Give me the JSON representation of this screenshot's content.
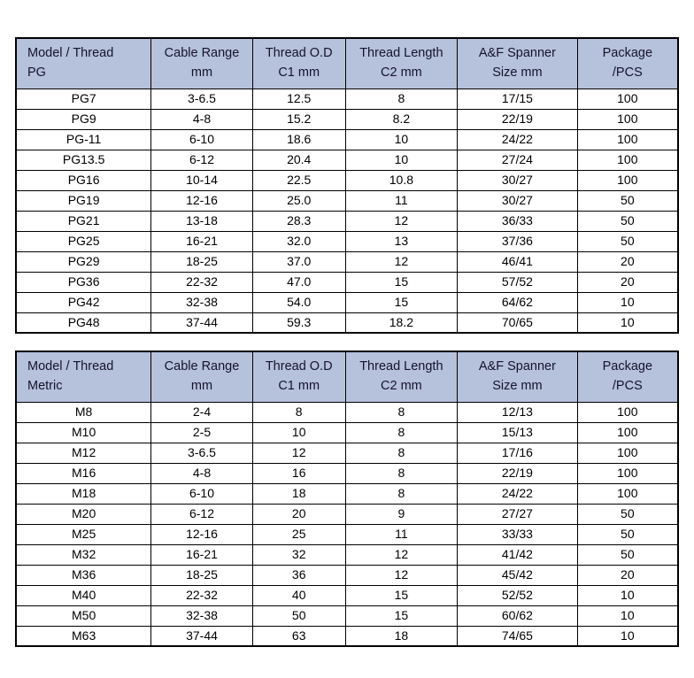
{
  "document": {
    "background": "#ffffff",
    "header_bg": "#b6c1dc",
    "border_color": "#000000"
  },
  "tables": [
    {
      "name": "pg-thread-table",
      "columns": [
        "Model / Thread\nPG",
        "Cable Range\nmm",
        "Thread O.D\nC1 mm",
        "Thread Length\nC2 mm",
        "A&F Spanner\nSize mm",
        "Package\n/PCS"
      ],
      "rows": [
        [
          "PG7",
          "3-6.5",
          "12.5",
          "8",
          "17/15",
          "100"
        ],
        [
          "PG9",
          "4-8",
          "15.2",
          "8.2",
          "22/19",
          "100"
        ],
        [
          "PG-11",
          "6-10",
          "18.6",
          "10",
          "24/22",
          "100"
        ],
        [
          "PG13.5",
          "6-12",
          "20.4",
          "10",
          "27/24",
          "100"
        ],
        [
          "PG16",
          "10-14",
          "22.5",
          "10.8",
          "30/27",
          "100"
        ],
        [
          "PG19",
          "12-16",
          "25.0",
          "11",
          "30/27",
          "50"
        ],
        [
          "PG21",
          "13-18",
          "28.3",
          "12",
          "36/33",
          "50"
        ],
        [
          "PG25",
          "16-21",
          "32.0",
          "13",
          "37/36",
          "50"
        ],
        [
          "PG29",
          "18-25",
          "37.0",
          "12",
          "46/41",
          "20"
        ],
        [
          "PG36",
          "22-32",
          "47.0",
          "15",
          "57/52",
          "20"
        ],
        [
          "PG42",
          "32-38",
          "54.0",
          "15",
          "64/62",
          "10"
        ],
        [
          "PG48",
          "37-44",
          "59.3",
          "18.2",
          "70/65",
          "10"
        ]
      ]
    },
    {
      "name": "metric-thread-table",
      "columns": [
        "Model / Thread\nMetric",
        "Cable Range\nmm",
        "Thread O.D\nC1 mm",
        "Thread Length\nC2 mm",
        "A&F Spanner\nSize mm",
        "Package\n/PCS"
      ],
      "rows": [
        [
          "M8",
          "2-4",
          "8",
          "8",
          "12/13",
          "100"
        ],
        [
          "M10",
          "2-5",
          "10",
          "8",
          "15/13",
          "100"
        ],
        [
          "M12",
          "3-6.5",
          "12",
          "8",
          "17/16",
          "100"
        ],
        [
          "M16",
          "4-8",
          "16",
          "8",
          "22/19",
          "100"
        ],
        [
          "M18",
          "6-10",
          "18",
          "8",
          "24/22",
          "100"
        ],
        [
          "M20",
          "6-12",
          "20",
          "9",
          "27/27",
          "50"
        ],
        [
          "M25",
          "12-16",
          "25",
          "11",
          "33/33",
          "50"
        ],
        [
          "M32",
          "16-21",
          "32",
          "12",
          "41/42",
          "50"
        ],
        [
          "M36",
          "18-25",
          "36",
          "12",
          "45/42",
          "20"
        ],
        [
          "M40",
          "22-32",
          "40",
          "15",
          "52/52",
          "10"
        ],
        [
          "M50",
          "32-38",
          "50",
          "15",
          "60/62",
          "10"
        ],
        [
          "M63",
          "37-44",
          "63",
          "18",
          "74/65",
          "10"
        ]
      ]
    }
  ]
}
